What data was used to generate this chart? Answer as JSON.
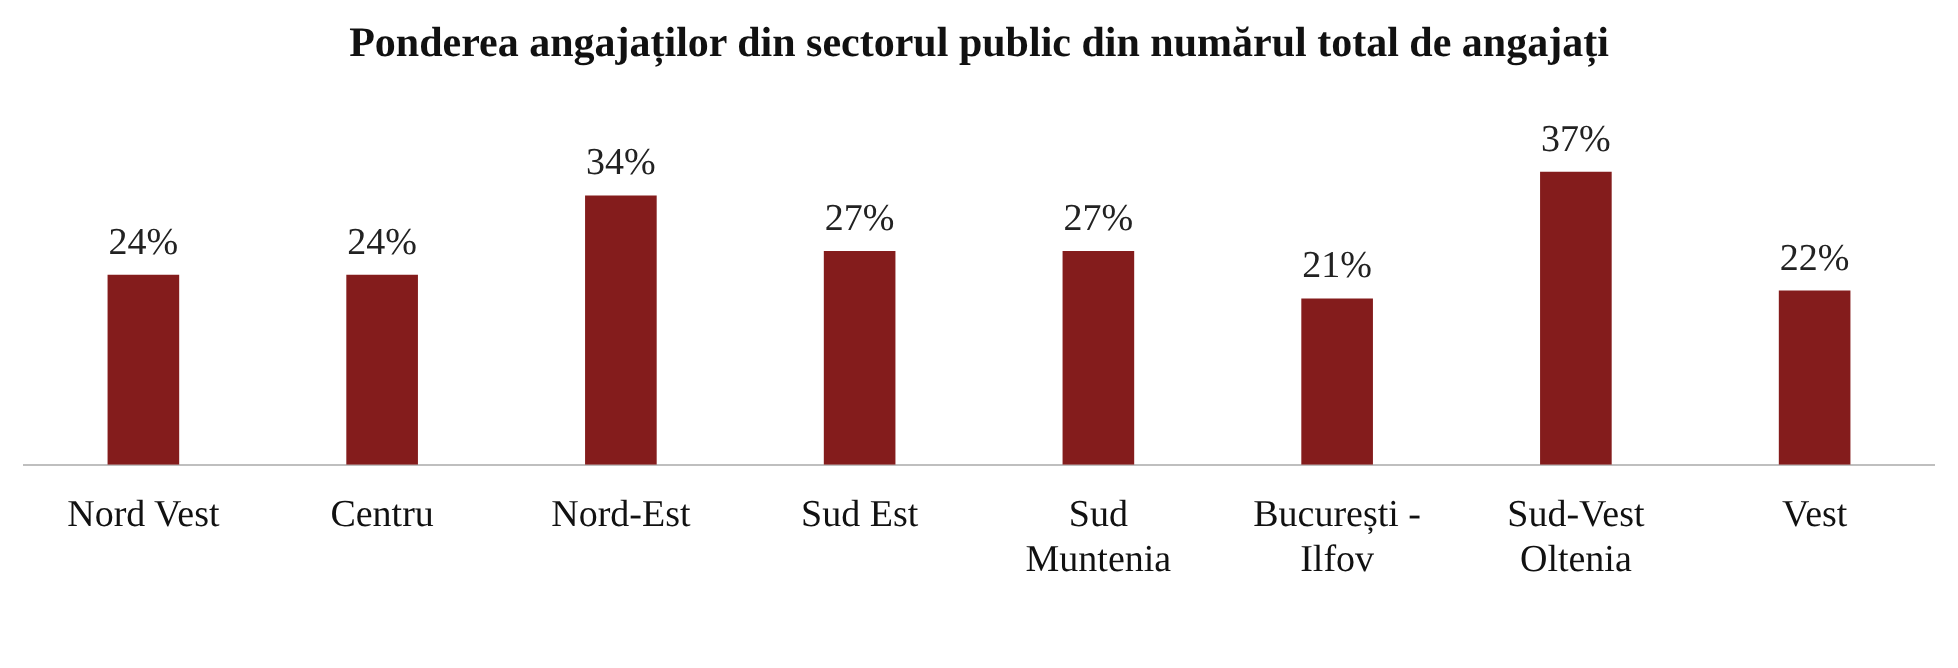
{
  "chart_data": {
    "type": "bar",
    "title": "Ponderea angajaților din sectorul public din numărul total de angajați",
    "categories": [
      "Nord Vest",
      "Centru",
      "Nord-Est",
      "Sud Est",
      "Sud Muntenia",
      "București - Ilfov",
      "Sud-Vest Oltenia",
      "Vest"
    ],
    "values": [
      24,
      24,
      34,
      27,
      27,
      21,
      37,
      22
    ],
    "value_labels": [
      "24%",
      "24%",
      "34%",
      "27%",
      "27%",
      "21%",
      "37%",
      "22%"
    ],
    "color": "#841c1c",
    "grid": false,
    "legend": false
  }
}
